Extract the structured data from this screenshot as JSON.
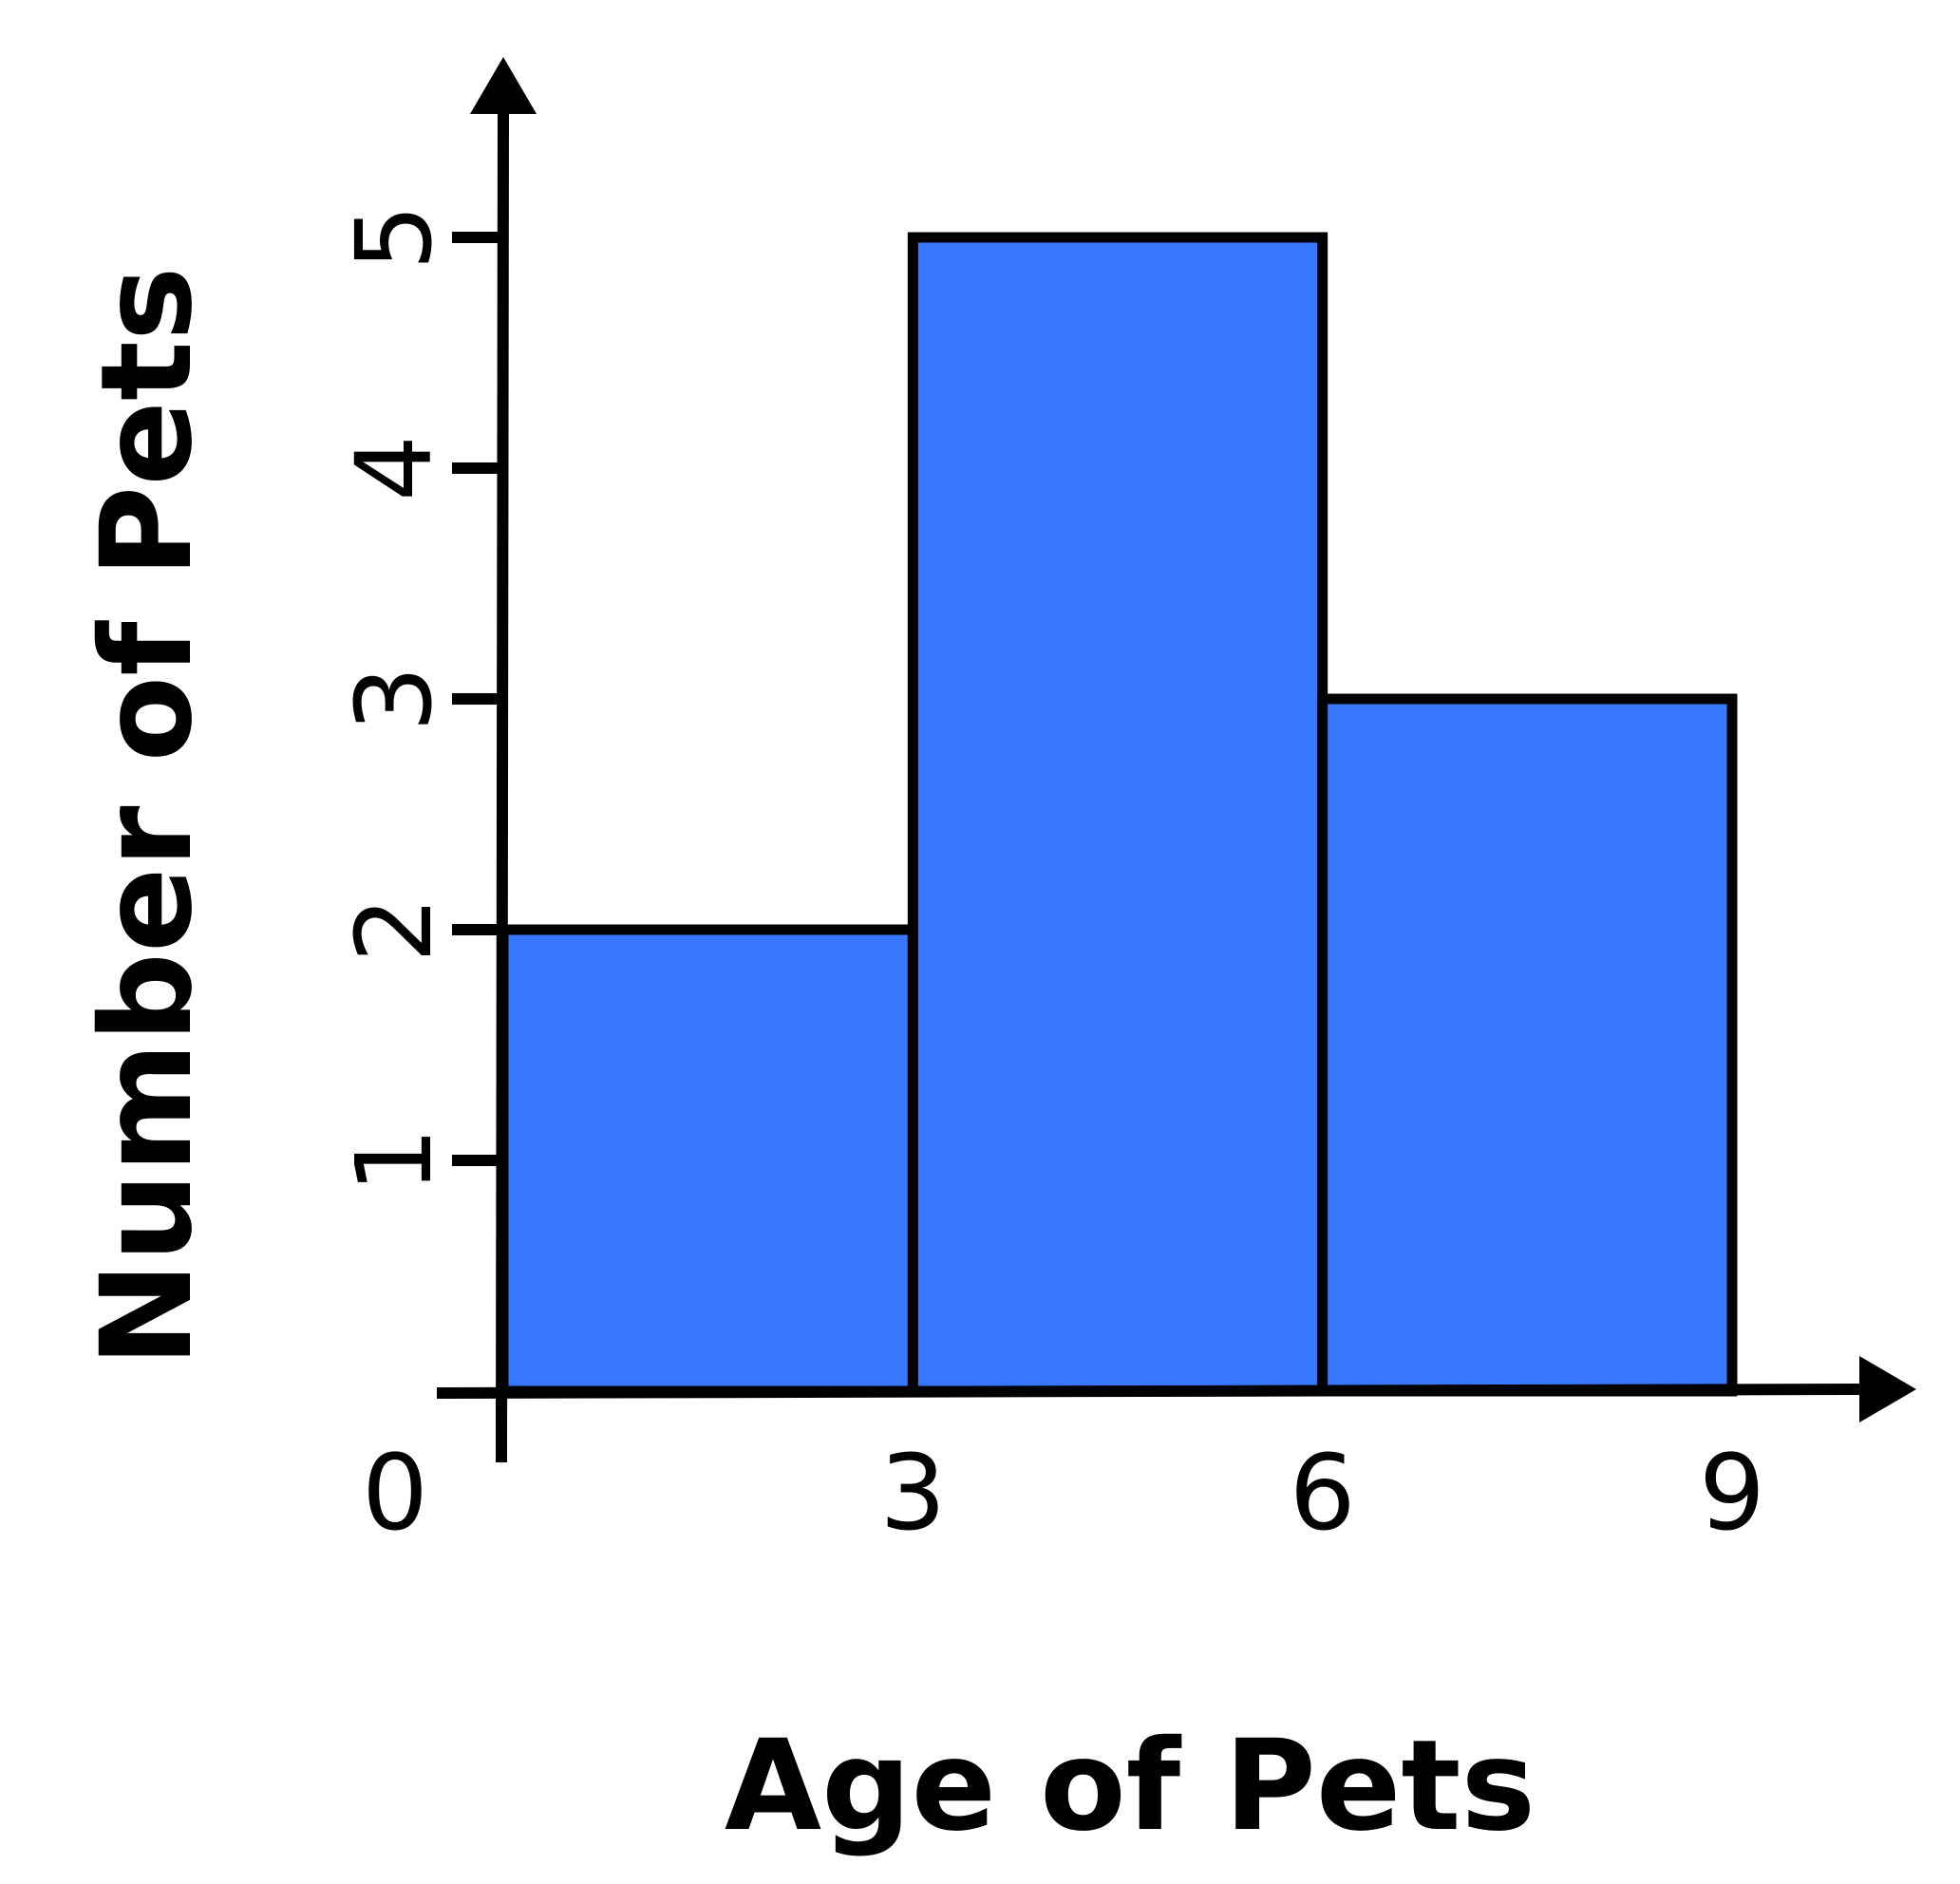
{
  "chart_data": {
    "type": "bar",
    "title": "",
    "xlabel": "Age of Pets",
    "ylabel": "Number of Pets",
    "bins": [
      {
        "start": 0,
        "end": 3,
        "value": 2
      },
      {
        "start": 3,
        "end": 6,
        "value": 5
      },
      {
        "start": 6,
        "end": 9,
        "value": 3
      }
    ],
    "x_ticks": [
      "0",
      "3",
      "6",
      "9"
    ],
    "y_ticks": [
      "1",
      "2",
      "3",
      "4",
      "5"
    ],
    "xlim": [
      0,
      9
    ],
    "ylim": [
      0,
      5
    ],
    "grid": false,
    "bar_color": "#3778FF",
    "edge_color": "#000000"
  }
}
